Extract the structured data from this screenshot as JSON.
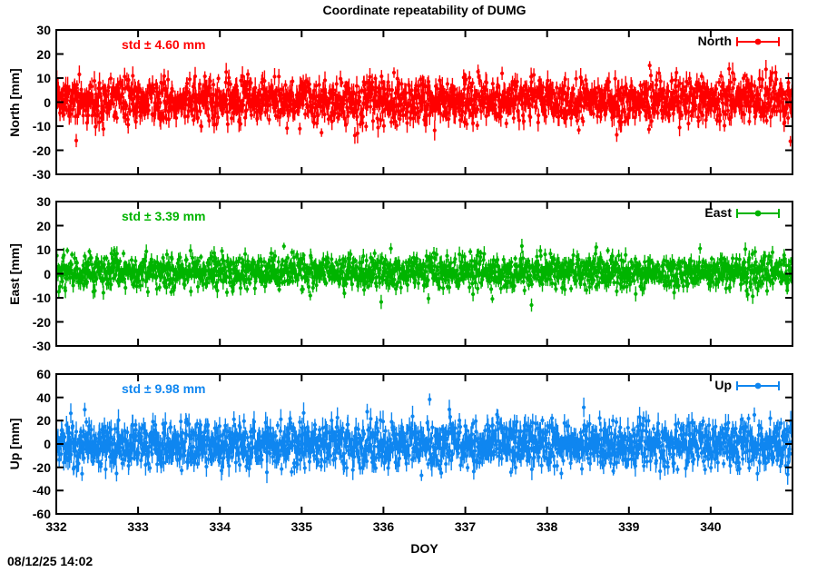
{
  "title": "Coordinate repeatability of DUMG",
  "timestamp": "08/12/25 14:02",
  "x_axis": {
    "label": "DOY",
    "lim": [
      332,
      341
    ],
    "ticks": [
      332,
      333,
      334,
      335,
      336,
      337,
      338,
      339,
      340
    ]
  },
  "chart_data": [
    {
      "type": "scatter",
      "marker": "filled-circle-with-vertical-errorbar",
      "name": "North",
      "ylabel": "North [mm]",
      "std_label": "std ± 4.60 mm",
      "legend_label": "North",
      "color": "#ff0000",
      "std_mm": 4.6,
      "mean_mm": 0.8,
      "ylim": [
        -30,
        30
      ],
      "yticks": [
        30,
        20,
        10,
        0,
        -10,
        -20,
        -30
      ],
      "n_points": 1900
    },
    {
      "type": "scatter",
      "marker": "filled-circle-with-vertical-errorbar",
      "name": "East",
      "ylabel": "East [mm]",
      "std_label": "std ± 3.39 mm",
      "legend_label": "East",
      "color": "#00b400",
      "std_mm": 3.39,
      "mean_mm": 0.9,
      "ylim": [
        -30,
        30
      ],
      "yticks": [
        30,
        20,
        10,
        0,
        -10,
        -20,
        -30
      ],
      "n_points": 1900
    },
    {
      "type": "scatter",
      "marker": "filled-circle-with-vertical-errorbar",
      "name": "Up",
      "ylabel": "Up [mm]",
      "std_label": "std ± 9.98 mm",
      "legend_label": "Up",
      "color": "#0f86f0",
      "std_mm": 9.98,
      "mean_mm": 0.0,
      "ylim": [
        -60,
        60
      ],
      "yticks": [
        60,
        40,
        20,
        0,
        -20,
        -40,
        -60
      ],
      "n_points": 1900
    }
  ]
}
